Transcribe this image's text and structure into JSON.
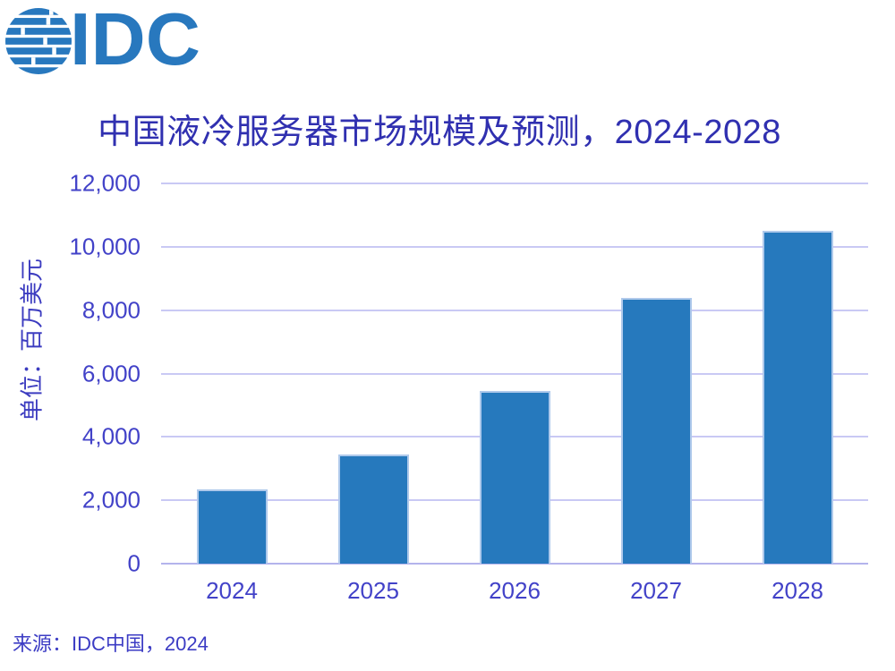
{
  "logo": {
    "text": "IDC",
    "color": "#2878BE"
  },
  "title": {
    "text": "中国液冷服务器市场规模及预测，2024-2028",
    "color": "#3030B0"
  },
  "source": {
    "text": "来源：IDC中国，2024",
    "color": "#3C3CC4"
  },
  "chart_data": {
    "type": "bar",
    "title": "中国液冷服务器市场规模及预测，2024-2028",
    "categories": [
      "2024",
      "2025",
      "2026",
      "2027",
      "2028"
    ],
    "values": [
      2350,
      3450,
      5450,
      8400,
      10500
    ],
    "xlabel": "",
    "ylabel": "单位：百万美元",
    "ylim": [
      0,
      12000
    ],
    "ytick_step": 2000,
    "ytick_labels": [
      "0",
      "2,000",
      "4,000",
      "6,000",
      "8,000",
      "10,000",
      "12,000"
    ],
    "grid": true,
    "legend": false,
    "bar_color": "#2679BD",
    "bar_edge_color": "#AFC9EB",
    "grid_color": "#C9C9F4",
    "axis_line_color": "#B4B4EC",
    "tick_label_color": "#4242C8",
    "axis_title_color": "#3C3CC0"
  }
}
